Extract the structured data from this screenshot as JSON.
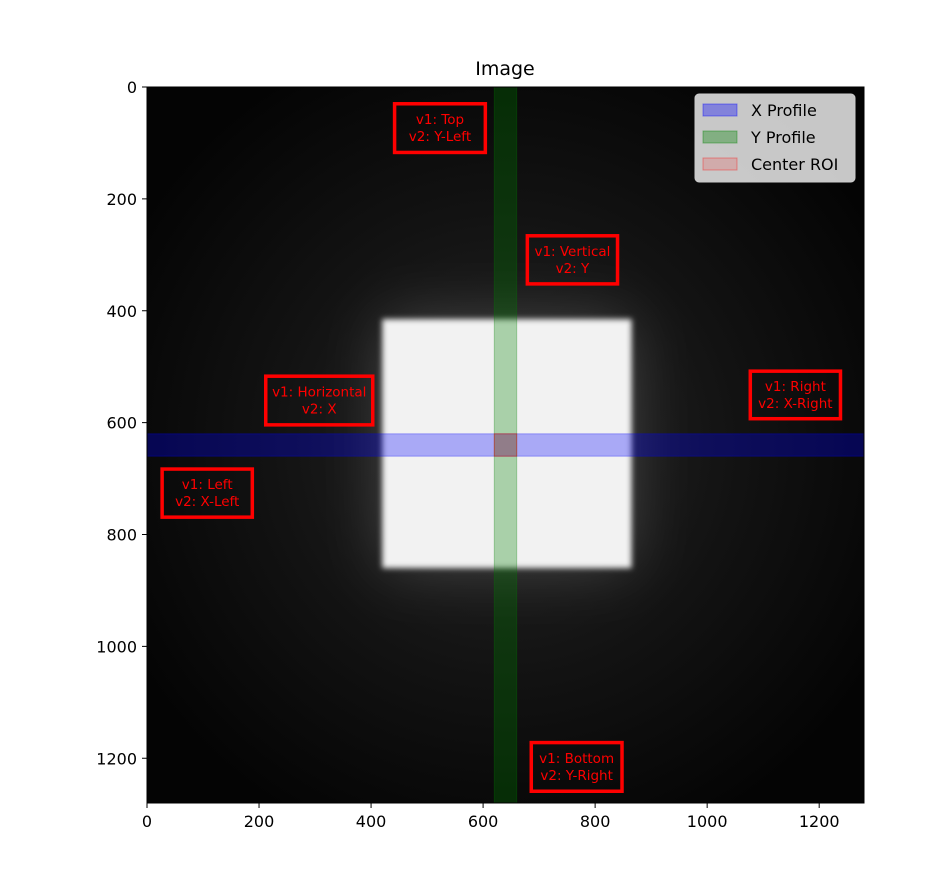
{
  "chart_data": {
    "type": "heatmap",
    "title": "Image",
    "xlabel": "",
    "ylabel": "",
    "xlim": [
      0,
      1280
    ],
    "ylim": [
      1280,
      0
    ],
    "x_ticks": [
      0,
      200,
      400,
      600,
      800,
      1000,
      1200
    ],
    "y_ticks": [
      0,
      200,
      400,
      600,
      800,
      1000,
      1200
    ],
    "grid": false,
    "colormap": "gray",
    "bright_square": {
      "x": [
        420,
        865
      ],
      "y": [
        415,
        860
      ]
    },
    "legend": {
      "placement": "top-right",
      "entries": [
        {
          "label": "X Profile",
          "color": "#0000ff"
        },
        {
          "label": "Y Profile",
          "color": "#008000"
        },
        {
          "label": "Center ROI",
          "color": "#ff0000"
        }
      ]
    },
    "regions": [
      {
        "name": "X Profile",
        "kind": "horizontal_band",
        "y": [
          620,
          660
        ],
        "color": "#0000ff"
      },
      {
        "name": "Y Profile",
        "kind": "vertical_band",
        "x": [
          620,
          660
        ],
        "color": "#008000"
      },
      {
        "name": "Center ROI",
        "kind": "rect",
        "x": [
          620,
          660
        ],
        "y": [
          620,
          660
        ],
        "color": "#ff0000"
      }
    ],
    "annotations": [
      {
        "name": "top",
        "lines": [
          "v1: Top",
          "v2: Y-Left"
        ],
        "x": [
          442,
          604
        ],
        "y": [
          30,
          117
        ]
      },
      {
        "name": "vertical",
        "lines": [
          "v1: Vertical",
          "v2: Y"
        ],
        "x": [
          679,
          840
        ],
        "y": [
          266,
          352
        ]
      },
      {
        "name": "horizontal",
        "lines": [
          "v1: Horizontal",
          "v2: X"
        ],
        "x": [
          212,
          403
        ],
        "y": [
          517,
          604
        ]
      },
      {
        "name": "right",
        "lines": [
          "v1: Right",
          "v2: X-Right"
        ],
        "x": [
          1077,
          1238
        ],
        "y": [
          508,
          593
        ]
      },
      {
        "name": "left",
        "lines": [
          "v1: Left",
          "v2: X-Left"
        ],
        "x": [
          27,
          188
        ],
        "y": [
          683,
          769
        ]
      },
      {
        "name": "bottom",
        "lines": [
          "v1: Bottom",
          "v2: Y-Right"
        ],
        "x": [
          686,
          848
        ],
        "y": [
          1172,
          1259
        ]
      }
    ],
    "annotation_color": "#ff0000"
  }
}
